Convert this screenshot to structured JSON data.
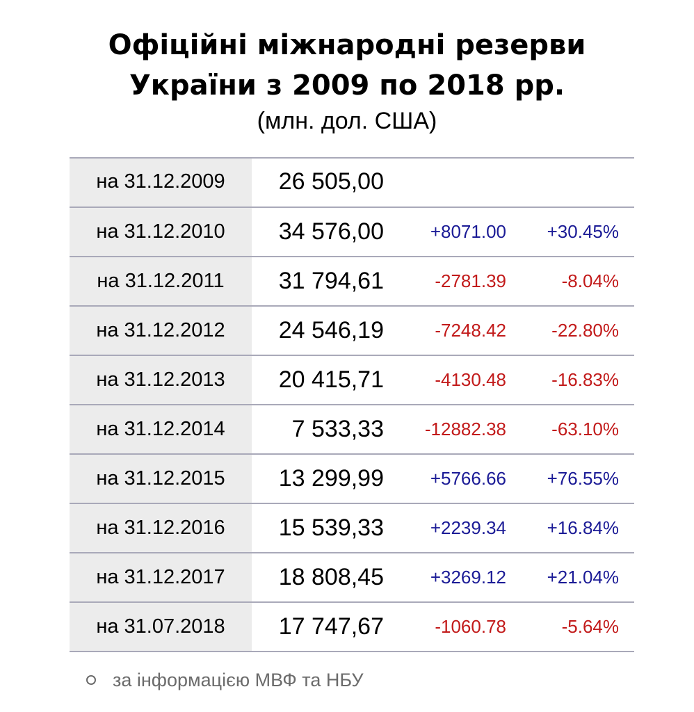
{
  "header": {
    "title_line1": "Офіційні міжнародні резерви",
    "title_line2": "України з 2009 по 2018 рр.",
    "subtitle": "(млн. дол. США)"
  },
  "table": {
    "rows": [
      {
        "date": "на 31.12.2009",
        "value": "26 505,00",
        "diff": "",
        "pct": "",
        "trend": "none"
      },
      {
        "date": "на 31.12.2010",
        "value": "34 576,00",
        "diff": "+8071.00",
        "pct": "+30.45%",
        "trend": "up"
      },
      {
        "date": "на 31.12.2011",
        "value": "31 794,61",
        "diff": "-2781.39",
        "pct": "-8.04%",
        "trend": "down"
      },
      {
        "date": "на 31.12.2012",
        "value": "24 546,19",
        "diff": "-7248.42",
        "pct": "-22.80%",
        "trend": "down"
      },
      {
        "date": "на 31.12.2013",
        "value": "20 415,71",
        "diff": "-4130.48",
        "pct": "-16.83%",
        "trend": "down"
      },
      {
        "date": "на 31.12.2014",
        "value": "7 533,33",
        "diff": "-12882.38",
        "pct": "-63.10%",
        "trend": "down"
      },
      {
        "date": "на 31.12.2015",
        "value": "13 299,99",
        "diff": "+5766.66",
        "pct": "+76.55%",
        "trend": "up"
      },
      {
        "date": "на 31.12.2016",
        "value": "15 539,33",
        "diff": "+2239.34",
        "pct": "+16.84%",
        "trend": "up"
      },
      {
        "date": "на 31.12.2017",
        "value": "18 808,45",
        "diff": "+3269.12",
        "pct": "+21.04%",
        "trend": "up"
      },
      {
        "date": "на 31.07.2018",
        "value": "17 747,67",
        "diff": "-1060.78",
        "pct": "-5.64%",
        "trend": "down"
      }
    ]
  },
  "note": {
    "bullet_icon": "circle-bullet-icon",
    "text": "за інформацією МВФ та НБУ"
  },
  "colors": {
    "positive": "#1b1b96",
    "negative": "#c21a1a",
    "date_cell_bg": "#ececec",
    "row_border": "#a9a9b9",
    "note_text": "#6b6b6b"
  }
}
